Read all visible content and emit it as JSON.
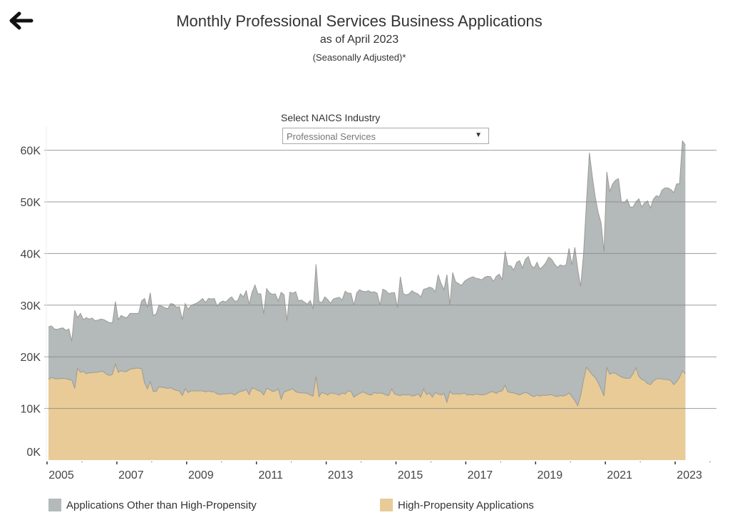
{
  "header": {
    "title": "Monthly Professional Services Business Applications",
    "subtitle": "as of April 2023",
    "note": "(Seasonally Adjusted)*",
    "back_icon": "arrow-left-icon"
  },
  "filter": {
    "label": "Select NAICS Industry",
    "selected": "Professional Services",
    "dropdown_icon": "triangle-down-icon"
  },
  "colors": {
    "other": "#b4b9b9",
    "high_propensity": "#e8cb97",
    "line": "#9b9b96",
    "grid": "#8a8a8a"
  },
  "chart_data": {
    "type": "area",
    "stacked": true,
    "title": "Monthly Professional Services Business Applications",
    "xlabel": "",
    "ylabel": "",
    "start": "2005-01",
    "end": "2023-04",
    "frequency": "monthly",
    "ylim": [
      0,
      60000
    ],
    "yticks": [
      "0K",
      "10K",
      "20K",
      "30K",
      "40K",
      "50K",
      "60K"
    ],
    "ytick_values": [
      0,
      10000,
      20000,
      30000,
      40000,
      50000,
      60000
    ],
    "xticks": [
      "2005",
      "2007",
      "2009",
      "2011",
      "2013",
      "2015",
      "2017",
      "2019",
      "2021",
      "2023"
    ],
    "xtick_values": [
      2005,
      2007,
      2009,
      2011,
      2013,
      2015,
      2017,
      2019,
      2021,
      2023
    ],
    "grid": true,
    "legend_position": "bottom",
    "units": "thousands",
    "series": [
      {
        "name": "Applications Other than High-Propensity",
        "key": "other",
        "note": "values derived as total minus high-propensity; total listed below (thousands)",
        "total": [
          25.8,
          26.0,
          25.4,
          25.3,
          25.5,
          25.6,
          25.1,
          25.4,
          23.0,
          29.0,
          27.6,
          28.4,
          27.2,
          27.6,
          27.3,
          27.5,
          27.0,
          27.1,
          27.3,
          27.2,
          26.9,
          26.6,
          26.6,
          30.7,
          27.2,
          28.0,
          27.7,
          27.6,
          28.4,
          28.4,
          28.4,
          28.4,
          30.8,
          31.3,
          29.5,
          32.4,
          28.0,
          28.3,
          30.0,
          29.8,
          29.5,
          29.3,
          30.3,
          30.2,
          29.6,
          29.7,
          27.2,
          30.3,
          29.2,
          29.9,
          30.2,
          30.4,
          30.8,
          31.3,
          30.5,
          31.3,
          31.2,
          31.3,
          29.8,
          30.5,
          30.8,
          30.6,
          31.2,
          31.6,
          30.8,
          30.8,
          32.2,
          31.6,
          32.8,
          30.2,
          32.5,
          33.9,
          32.2,
          32.2,
          28.3,
          33.2,
          32.4,
          32.1,
          32.2,
          30.8,
          32.5,
          32.0,
          27.0,
          32.5,
          32.3,
          32.6,
          30.8,
          31.0,
          30.6,
          30.2,
          30.9,
          29.3,
          37.9,
          30.7,
          30.5,
          31.6,
          31.1,
          30.4,
          31.2,
          31.4,
          31.5,
          31.0,
          32.7,
          32.3,
          32.3,
          30.0,
          32.4,
          33.0,
          32.7,
          32.6,
          32.8,
          32.5,
          32.6,
          32.3,
          30.0,
          33.1,
          32.8,
          32.2,
          32.4,
          32.4,
          29.5,
          35.5,
          32.2,
          32.0,
          32.2,
          32.8,
          32.4,
          32.2,
          31.6,
          33.1,
          33.2,
          33.5,
          33.3,
          32.6,
          35.9,
          34.2,
          33.0,
          35.9,
          30.0,
          36.3,
          34.5,
          34.2,
          33.8,
          34.6,
          35.0,
          35.3,
          35.5,
          35.2,
          35.1,
          34.9,
          35.4,
          35.6,
          35.5,
          34.6,
          35.6,
          36.0,
          34.9,
          40.4,
          37.6,
          37.6,
          36.8,
          38.3,
          38.6,
          37.2,
          38.9,
          39.4,
          37.7,
          37.2,
          38.3,
          37.0,
          37.5,
          38.2,
          39.3,
          38.9,
          38.0,
          37.3,
          37.8,
          37.6,
          37.8,
          41.0,
          37.8,
          41.2,
          37.0,
          33.6,
          40.0,
          50.0,
          59.5,
          55.0,
          51.0,
          48.0,
          46.0,
          40.3,
          55.8,
          52.0,
          53.5,
          54.2,
          54.5,
          50.0,
          49.8,
          50.5,
          49.0,
          49.0,
          50.0,
          50.6,
          49.0,
          49.8,
          50.2,
          48.8,
          50.5,
          51.2,
          51.0,
          52.3,
          52.7,
          52.7,
          52.4,
          51.8,
          53.5,
          53.5,
          61.8,
          61.0
        ]
      },
      {
        "name": "High-Propensity Applications",
        "key": "high_propensity",
        "values": [
          15.6,
          16.0,
          15.8,
          15.7,
          15.8,
          15.8,
          15.8,
          15.6,
          15.5,
          13.9,
          17.8,
          17.0,
          17.2,
          16.7,
          16.9,
          16.9,
          17.0,
          17.0,
          17.2,
          17.1,
          16.6,
          16.4,
          16.6,
          18.6,
          17.0,
          17.3,
          17.1,
          17.2,
          17.6,
          17.7,
          17.8,
          17.8,
          17.7,
          15.0,
          13.8,
          15.2,
          13.3,
          13.3,
          14.2,
          14.1,
          14.0,
          13.9,
          14.0,
          13.7,
          13.5,
          13.4,
          12.5,
          13.8,
          13.1,
          13.4,
          13.4,
          13.4,
          13.4,
          13.4,
          13.2,
          13.4,
          13.2,
          13.2,
          12.8,
          12.7,
          12.8,
          12.8,
          12.9,
          12.9,
          12.6,
          13.0,
          13.3,
          13.4,
          13.7,
          12.7,
          14.0,
          13.8,
          13.5,
          13.3,
          12.6,
          13.9,
          13.7,
          13.3,
          13.4,
          13.8,
          11.8,
          13.2,
          13.4,
          13.6,
          13.8,
          13.2,
          13.1,
          13.0,
          13.0,
          12.9,
          12.6,
          12.4,
          16.2,
          12.3,
          13.1,
          12.9,
          12.6,
          13.0,
          12.9,
          12.8,
          12.6,
          13.0,
          12.8,
          13.4,
          13.3,
          12.2,
          12.6,
          12.9,
          13.2,
          13.0,
          12.7,
          12.6,
          13.1,
          12.9,
          13.0,
          12.9,
          12.6,
          12.5,
          13.8,
          12.8,
          12.6,
          12.5,
          12.7,
          12.6,
          12.7,
          12.4,
          12.5,
          12.8,
          12.2,
          13.8,
          12.7,
          13.0,
          12.2,
          13.1,
          12.8,
          12.6,
          12.9,
          11.2,
          13.3,
          12.8,
          12.8,
          12.8,
          12.8,
          13.0,
          12.6,
          12.7,
          12.6,
          12.8,
          12.7,
          12.6,
          12.7,
          12.9,
          13.2,
          13.2,
          12.9,
          13.3,
          13.4,
          14.5,
          13.2,
          13.1,
          13.0,
          12.8,
          12.6,
          12.9,
          13.1,
          12.9,
          12.5,
          12.3,
          12.6,
          12.4,
          12.6,
          12.5,
          12.6,
          12.7,
          12.4,
          12.3,
          12.5,
          12.4,
          12.6,
          13.0,
          12.3,
          11.5,
          10.5,
          12.5,
          15.5,
          18.0,
          17.2,
          16.5,
          16.0,
          15.0,
          13.8,
          12.4,
          17.9,
          16.6,
          16.9,
          16.8,
          16.4,
          16.1,
          15.9,
          15.8,
          15.9,
          16.7,
          17.9,
          16.2,
          15.6,
          15.4,
          14.8,
          14.6,
          15.3,
          15.7,
          15.8,
          15.7,
          15.6,
          15.6,
          15.4,
          14.6,
          15.2,
          16.0,
          17.3,
          16.7
        ]
      }
    ]
  }
}
